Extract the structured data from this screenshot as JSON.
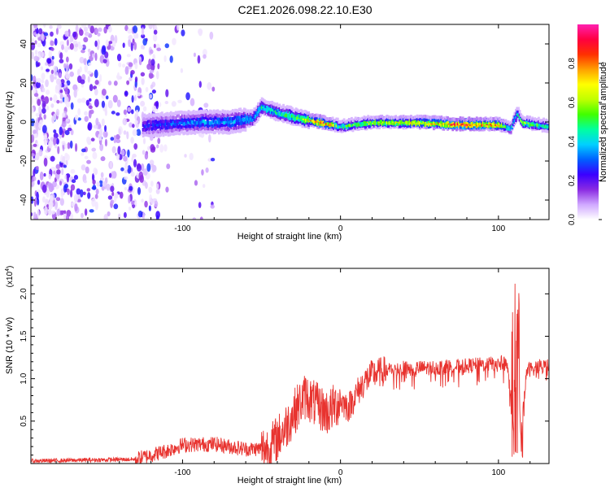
{
  "title": "C2E1.2026.098.22.10.E30",
  "chart_data": [
    {
      "type": "heatmap",
      "title": "C2E1.2026.098.22.10.E30",
      "xlabel": "Height of straight line (km)",
      "ylabel": "Frequency (Hz)",
      "xlim": [
        -196,
        132
      ],
      "ylim": [
        -50,
        50
      ],
      "xticks": [
        -100,
        0,
        100
      ],
      "yticks": [
        -40,
        -20,
        0,
        20,
        40
      ],
      "colorbar": {
        "label": "Normalized spectral amplitude",
        "range": [
          0,
          1
        ],
        "ticks": [
          0.0,
          0.2,
          0.4,
          0.6,
          0.8
        ],
        "colors": [
          "#ffffff",
          "#d0a8ff",
          "#8a2be2",
          "#3a00ff",
          "#0060ff",
          "#00d0ff",
          "#00ffa0",
          "#40ff00",
          "#c0ff00",
          "#ffff00",
          "#ffa000",
          "#ff3000",
          "#ff0040",
          "#ff20b0"
        ]
      },
      "signal_trace": [
        {
          "x": -125,
          "f": -2,
          "amp": 0.25
        },
        {
          "x": -110,
          "f": -1,
          "amp": 0.3
        },
        {
          "x": -90,
          "f": 0,
          "amp": 0.35
        },
        {
          "x": -70,
          "f": 0,
          "amp": 0.35
        },
        {
          "x": -55,
          "f": 2,
          "amp": 0.4
        },
        {
          "x": -50,
          "f": 8,
          "amp": 0.45
        },
        {
          "x": -40,
          "f": 5,
          "amp": 0.45
        },
        {
          "x": -25,
          "f": 2,
          "amp": 0.55
        },
        {
          "x": -12,
          "f": 0,
          "amp": 0.9
        },
        {
          "x": 0,
          "f": -2,
          "amp": 0.5
        },
        {
          "x": 20,
          "f": 0,
          "amp": 0.65
        },
        {
          "x": 50,
          "f": 0,
          "amp": 0.7
        },
        {
          "x": 75,
          "f": -1,
          "amp": 0.9
        },
        {
          "x": 100,
          "f": -1,
          "amp": 0.8
        },
        {
          "x": 108,
          "f": -3,
          "amp": 0.4
        },
        {
          "x": 112,
          "f": 5,
          "amp": 0.5
        },
        {
          "x": 115,
          "f": 0,
          "amp": 0.6
        },
        {
          "x": 132,
          "f": -2,
          "amp": 0.5
        }
      ],
      "noise_region_x": [
        -196,
        -115
      ]
    },
    {
      "type": "line",
      "xlabel": "Height of straight line (km)",
      "ylabel": "SNR (10 * v/v)",
      "multiplier_label": "(x10",
      "multiplier_exponent": "4",
      "xlim": [
        -196,
        132
      ],
      "ylim": [
        0,
        23000
      ],
      "xticks": [
        -100,
        0,
        100
      ],
      "yticks": [
        0.5,
        1.0,
        1.5,
        2.0
      ],
      "ytick_labels": [
        "0.5",
        "1.0",
        "1.5",
        "2.0"
      ],
      "series": [
        {
          "name": "SNR",
          "color": "#e8332f",
          "x": [
            -196,
            -130,
            -110,
            -100,
            -80,
            -60,
            -45,
            -35,
            -28,
            -22,
            -15,
            -8,
            0,
            5,
            10,
            15,
            20,
            30,
            40,
            60,
            80,
            100,
            105,
            108,
            110,
            112,
            114,
            118,
            125,
            132
          ],
          "y": [
            300,
            500,
            1500,
            2200,
            2300,
            1700,
            1800,
            4200,
            6500,
            8000,
            6800,
            6000,
            7400,
            6600,
            8200,
            9600,
            10500,
            11000,
            11200,
            11300,
            11500,
            11800,
            12000,
            8000,
            1500,
            20000,
            3000,
            11000,
            11400,
            11500
          ]
        }
      ]
    }
  ]
}
